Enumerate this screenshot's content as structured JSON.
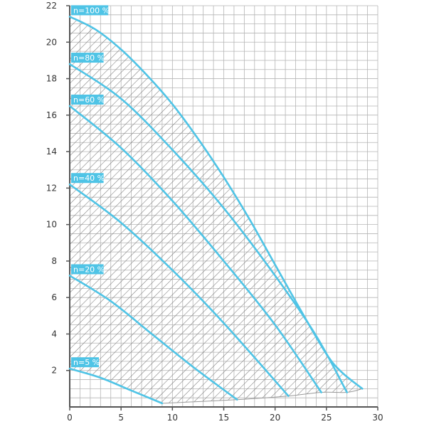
{
  "chart_data": {
    "type": "line",
    "title": "",
    "xlabel": "",
    "ylabel": "",
    "xlim": [
      0,
      30
    ],
    "ylim": [
      0,
      22
    ],
    "x_ticks": [
      0,
      5,
      10,
      15,
      20,
      25,
      30
    ],
    "y_ticks": [
      2,
      4,
      6,
      8,
      10,
      12,
      14,
      16,
      18,
      20,
      22
    ],
    "grid": true,
    "hatched_region": "operating envelope between n=100 % curve and n=5 % curve",
    "colors": {
      "curve": "#4fc4e6",
      "label_bg": "#4fc4e6",
      "grid": "#b5b5b5",
      "axis": "#555555",
      "hatch": "#7a7a7a"
    },
    "series": [
      {
        "name": "n=100 %",
        "x": [
          0,
          2.5,
          5,
          7.5,
          10,
          12.5,
          15,
          17.5,
          20,
          22.5,
          25,
          26.5,
          28.5
        ],
        "y": [
          21.4,
          20.7,
          19.6,
          18.2,
          16.6,
          14.7,
          12.6,
          10.3,
          7.8,
          5.3,
          2.9,
          1.9,
          1.0
        ]
      },
      {
        "name": "n=80 %",
        "x": [
          0,
          5,
          10,
          15,
          20,
          24,
          27
        ],
        "y": [
          18.8,
          16.9,
          14.1,
          10.9,
          7.2,
          3.9,
          0.8
        ]
      },
      {
        "name": "n=60 %",
        "x": [
          0,
          5,
          10,
          15,
          20,
          24.5
        ],
        "y": [
          16.5,
          14.2,
          11.3,
          8.0,
          4.5,
          0.8
        ]
      },
      {
        "name": "n=40 %",
        "x": [
          0,
          5,
          10,
          15,
          21.3
        ],
        "y": [
          12.2,
          10.1,
          7.5,
          4.6,
          0.6
        ]
      },
      {
        "name": "n=20 %",
        "x": [
          0,
          4,
          8,
          12,
          16.3
        ],
        "y": [
          7.2,
          5.8,
          4.0,
          2.2,
          0.4
        ]
      },
      {
        "name": "n=5 %",
        "x": [
          0,
          3,
          6,
          9
        ],
        "y": [
          2.1,
          1.6,
          0.9,
          0.2
        ]
      }
    ],
    "min_speed_boundary": {
      "x": [
        9,
        16.3,
        21.3,
        24.5,
        27,
        28.5
      ],
      "y": [
        0.2,
        0.4,
        0.6,
        0.8,
        0.8,
        1.0
      ]
    }
  }
}
